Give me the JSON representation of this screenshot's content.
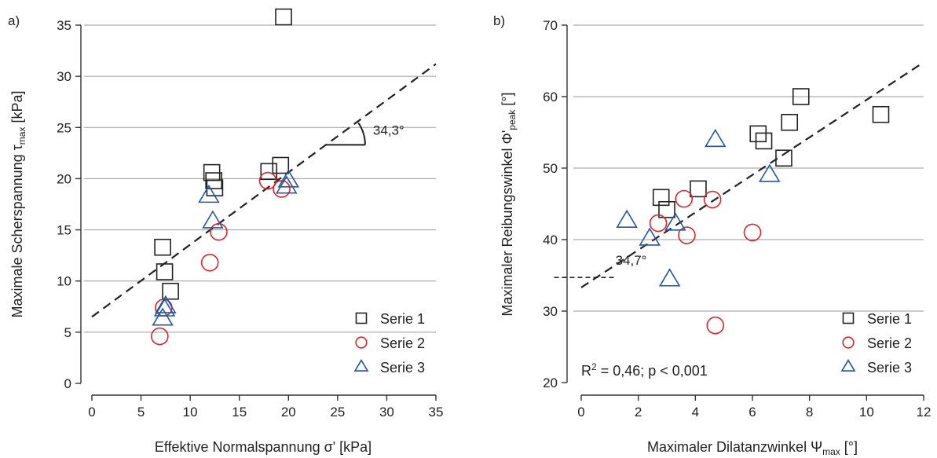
{
  "chart_data": [
    {
      "type": "scatter",
      "panel_label": "a)",
      "xlabel": "Effektive Normalspannung σ' [kPa]",
      "ylabel_main": "Maximale Scherspannung τ",
      "ylabel_sub": "max",
      "ylabel_unit": " [kPa]",
      "xlim": [
        0,
        35
      ],
      "ylim": [
        0,
        35
      ],
      "xticks": [
        0,
        5,
        10,
        15,
        20,
        25,
        30,
        35
      ],
      "yticks": [
        0,
        5,
        10,
        15,
        20,
        25,
        30,
        35
      ],
      "grid": "horizontal",
      "legend_position": "bottom-right",
      "series": [
        {
          "name": "Serie 1",
          "marker": "square",
          "color": "#222222",
          "x": [
            7.2,
            7.4,
            8.0,
            12.2,
            12.4,
            12.5,
            18.0,
            19.2,
            19.5
          ],
          "y": [
            13.3,
            10.9,
            9.0,
            20.6,
            19.8,
            19.1,
            20.7,
            21.3,
            35.8
          ]
        },
        {
          "name": "Serie 2",
          "marker": "circle",
          "color": "#d9262c",
          "x": [
            6.9,
            7.3,
            12.0,
            12.9,
            17.9,
            19.3
          ],
          "y": [
            4.6,
            7.4,
            11.8,
            14.8,
            19.8,
            19.0
          ]
        },
        {
          "name": "Serie 3",
          "marker": "triangle",
          "color": "#2156a6",
          "x": [
            7.2,
            7.4,
            7.5,
            11.9,
            12.3,
            19.8,
            20.0
          ],
          "y": [
            6.3,
            7.2,
            7.5,
            18.3,
            15.8,
            19.2,
            19.8
          ]
        }
      ],
      "fit_line": {
        "x": [
          0,
          35
        ],
        "y": [
          6.5,
          31.2
        ]
      },
      "angle_annotation": {
        "text": "34,3°",
        "x": 28.6,
        "y": 24.3
      }
    },
    {
      "type": "scatter",
      "panel_label": "b)",
      "xlabel_main": "Maximaler Dilatanzwinkel Ψ",
      "xlabel_sub": "max",
      "xlabel_unit": " [°]",
      "ylabel_main": "Maximaler Reibungswinkel Φ'",
      "ylabel_sub": "peak",
      "ylabel_unit": " [°]",
      "xlim": [
        0,
        12
      ],
      "ylim": [
        20,
        70
      ],
      "xticks": [
        0,
        2,
        4,
        6,
        8,
        10,
        12
      ],
      "yticks": [
        20,
        30,
        40,
        50,
        60,
        70
      ],
      "grid": "horizontal",
      "legend_position": "bottom-right",
      "series": [
        {
          "name": "Serie 1",
          "marker": "square",
          "color": "#222222",
          "x": [
            2.8,
            3.0,
            4.1,
            6.2,
            6.4,
            7.1,
            7.3,
            7.7,
            10.5
          ],
          "y": [
            45.9,
            44.2,
            47.1,
            54.8,
            53.8,
            51.4,
            56.4,
            60.0,
            57.5
          ]
        },
        {
          "name": "Serie 2",
          "marker": "circle",
          "color": "#d9262c",
          "x": [
            2.7,
            3.6,
            3.7,
            4.6,
            4.7,
            6.0
          ],
          "y": [
            42.3,
            45.7,
            40.6,
            45.6,
            28.0,
            41.0
          ]
        },
        {
          "name": "Serie 3",
          "marker": "triangle",
          "color": "#2156a6",
          "x": [
            1.6,
            2.4,
            3.1,
            3.3,
            4.7,
            6.6
          ],
          "y": [
            42.6,
            40.1,
            34.4,
            42.2,
            53.9,
            49.0
          ]
        }
      ],
      "fit_line": {
        "x": [
          0,
          12
        ],
        "y": [
          33.3,
          64.8
        ]
      },
      "reference_line": {
        "x": [
          -0.95,
          1.2
        ],
        "y": [
          34.7,
          34.7
        ]
      },
      "angle_annotation": {
        "text": "34,7°",
        "x": 1.2,
        "y": 36.5
      },
      "stats_text": {
        "prefix": "R",
        "exponent": "2",
        "rest": " = 0,46; p < 0,001"
      }
    }
  ]
}
